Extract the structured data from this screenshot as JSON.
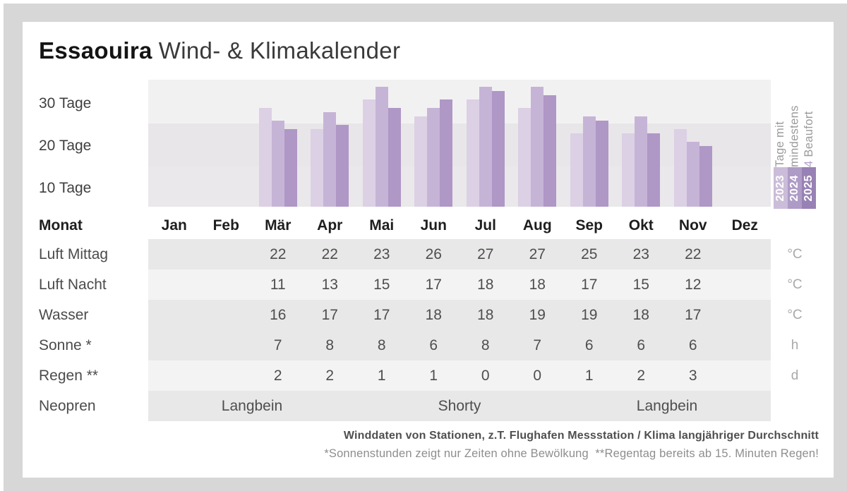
{
  "title": {
    "location": "Essaouira",
    "subtitle": "Wind- & Klimakalender"
  },
  "chart_data": {
    "type": "bar",
    "title": "Tage mit mindestens 4 Beaufort",
    "ylabel": "Tage mit mindestens 4 Beaufort",
    "categories": [
      "Jan",
      "Feb",
      "Mär",
      "Apr",
      "Mai",
      "Jun",
      "Jul",
      "Aug",
      "Sep",
      "Okt",
      "Nov",
      "Dez"
    ],
    "series": [
      {
        "name": "2023",
        "color": "#dcd0e5",
        "values": [
          null,
          null,
          29,
          24,
          31,
          27,
          31,
          29,
          23,
          23,
          24,
          null
        ]
      },
      {
        "name": "2024",
        "color": "#c6b4d7",
        "values": [
          null,
          null,
          26,
          28,
          34,
          29,
          34,
          34,
          27,
          27,
          21,
          null
        ]
      },
      {
        "name": "2025",
        "color": "#af97c6",
        "values": [
          null,
          null,
          24,
          25,
          29,
          31,
          33,
          32,
          26,
          23,
          20,
          null
        ]
      }
    ],
    "y_ticks": [
      "30 Tage",
      "20 Tage",
      "10 Tage"
    ],
    "ylim": [
      5.67,
      35.67
    ],
    "grid": "horizontal-bands",
    "legend_position": "right"
  },
  "legend": {
    "caption_line1": "Tage mit",
    "caption_line2": "mindestens",
    "caption_highlight": "4",
    "caption_line3_rest": " Beaufort",
    "years": [
      {
        "label": "2023",
        "color": "#cbbdd9"
      },
      {
        "label": "2024",
        "color": "#ae9bc6"
      },
      {
        "label": "2025",
        "color": "#9881b4"
      }
    ]
  },
  "table": {
    "month_header_label": "Monat",
    "row_shades": [
      "dark",
      "light",
      "dark",
      "dark",
      "light",
      "dark"
    ],
    "shade_colors": {
      "dark": "#e9e8e9",
      "light": "#f4f3f4"
    },
    "rows": [
      {
        "label": "Luft Mittag",
        "unit": "°C",
        "values": [
          "",
          "",
          "22",
          "22",
          "23",
          "26",
          "27",
          "27",
          "25",
          "23",
          "22",
          ""
        ]
      },
      {
        "label": "Luft Nacht",
        "unit": "°C",
        "values": [
          "",
          "",
          "11",
          "13",
          "15",
          "17",
          "18",
          "18",
          "17",
          "15",
          "12",
          ""
        ]
      },
      {
        "label": "Wasser",
        "unit": "°C",
        "values": [
          "",
          "",
          "16",
          "17",
          "17",
          "18",
          "18",
          "19",
          "19",
          "18",
          "17",
          ""
        ]
      },
      {
        "label": "Sonne *",
        "unit": "h",
        "values": [
          "",
          "",
          "7",
          "8",
          "8",
          "6",
          "8",
          "7",
          "6",
          "6",
          "6",
          ""
        ]
      },
      {
        "label": "Regen **",
        "unit": "d",
        "values": [
          "",
          "",
          "2",
          "2",
          "1",
          "1",
          "0",
          "0",
          "1",
          "2",
          "3",
          ""
        ]
      }
    ],
    "neoprene_row": {
      "label": "Neopren",
      "segments": [
        {
          "text": "Langbein",
          "span": 4
        },
        {
          "text": "Shorty",
          "span": 4
        },
        {
          "text": "Langbein",
          "span": 4
        }
      ]
    }
  },
  "footer": {
    "line1": "Winddaten von Stationen, z.T. Flughafen Messstation / Klima langjähriger Durchschnitt",
    "line2": "*Sonnenstunden zeigt nur Zeiten ohne Bewölkung  **Regentag bereits ab 15. Minuten Regen!"
  }
}
